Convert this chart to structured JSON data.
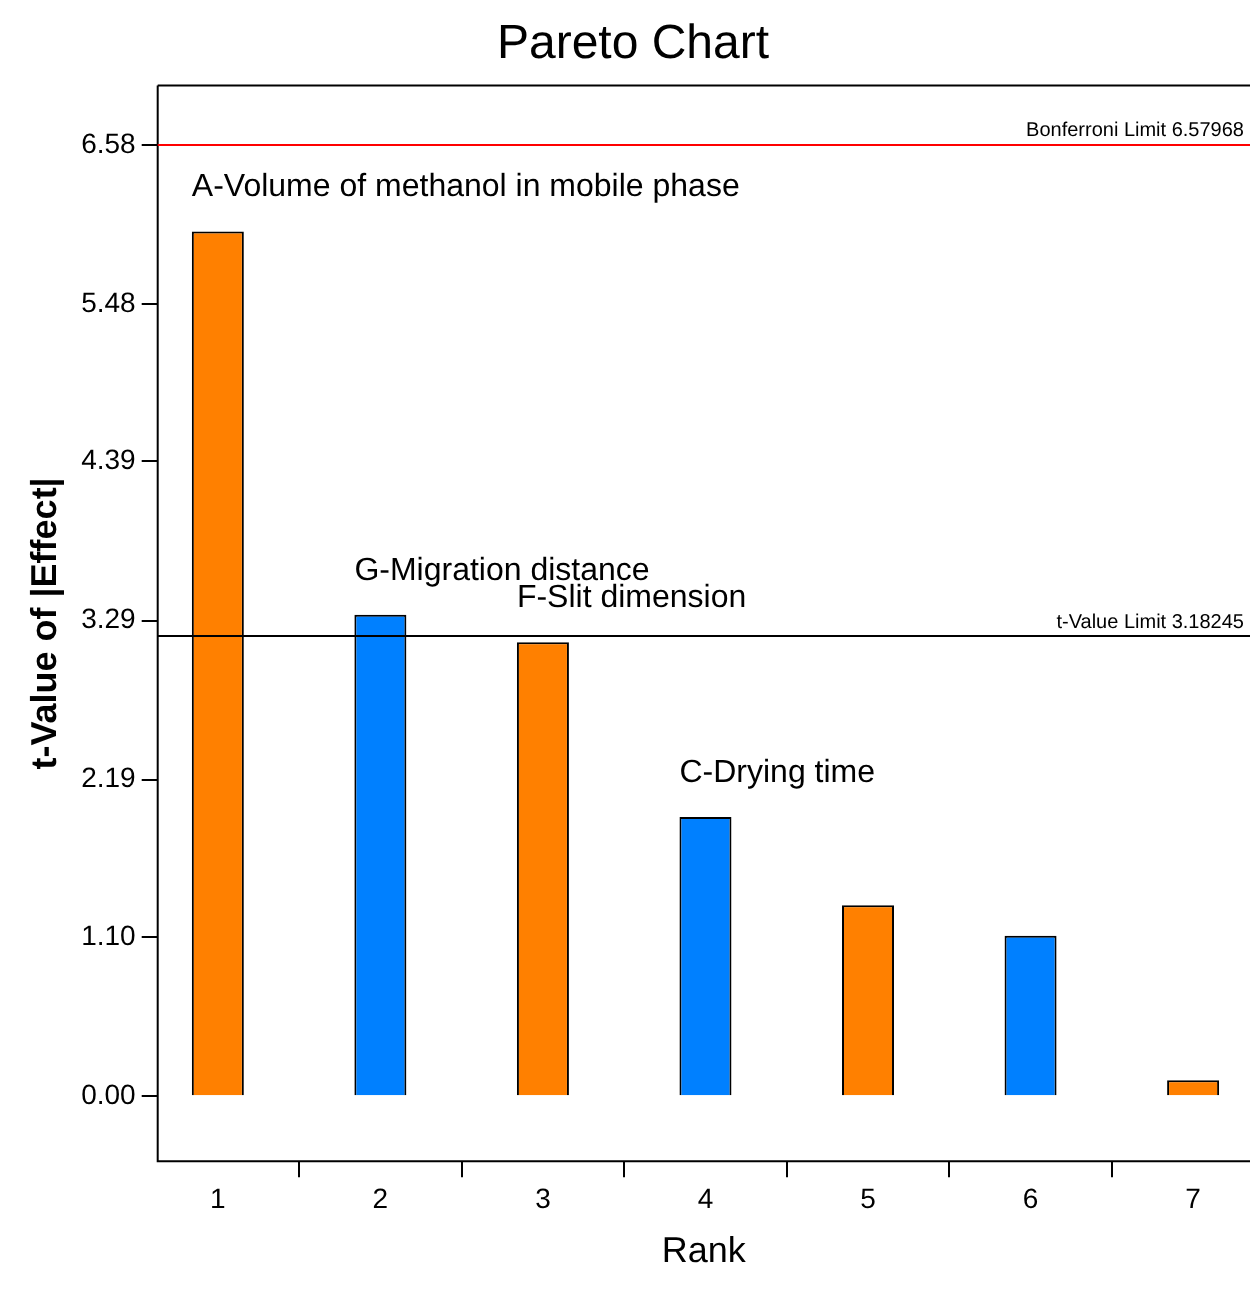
{
  "chart_data": {
    "type": "bar",
    "title": "Pareto Chart",
    "xlabel": "Rank",
    "ylabel": "t-Value of |Effect|",
    "x": [
      1,
      2,
      3,
      4,
      5,
      6,
      7
    ],
    "values": [
      5.98,
      3.33,
      3.14,
      1.93,
      1.32,
      1.11,
      0.11
    ],
    "colors": [
      "#ff8000",
      "#0080ff",
      "#ff8000",
      "#0080ff",
      "#ff8000",
      "#0080ff",
      "#ff8000"
    ],
    "xlim": [
      0.63,
      7.35
    ],
    "xticks": [
      1,
      2,
      3,
      4,
      5,
      6,
      7
    ],
    "ylim": [
      -0.45,
      6.99
    ],
    "yticks": [
      {
        "value": 0,
        "label": "0.00"
      },
      {
        "value": 1.1,
        "label": "1.10"
      },
      2.19,
      3.29,
      4.39,
      5.48,
      6.58
    ],
    "grid": false,
    "ref_lines": [
      {
        "axis": "y",
        "value": 6.57968,
        "label": "Bonferroni Limit 6.57968",
        "color": "#ff0000"
      },
      {
        "axis": "y",
        "value": 3.18245,
        "label": "t-Value Limit 3.18245",
        "color": "#000000"
      }
    ],
    "annotations": [
      {
        "text": "A-Volume of methanol in mobile phase",
        "x": 1,
        "y": 5.98
      },
      {
        "text": "G-Migration distance",
        "x": 2,
        "y": 3.33
      },
      {
        "text": "F-Slit dimension",
        "x": 3,
        "y": 3.14
      },
      {
        "text": "C-Drying time",
        "x": 4,
        "y": 1.93
      }
    ]
  }
}
